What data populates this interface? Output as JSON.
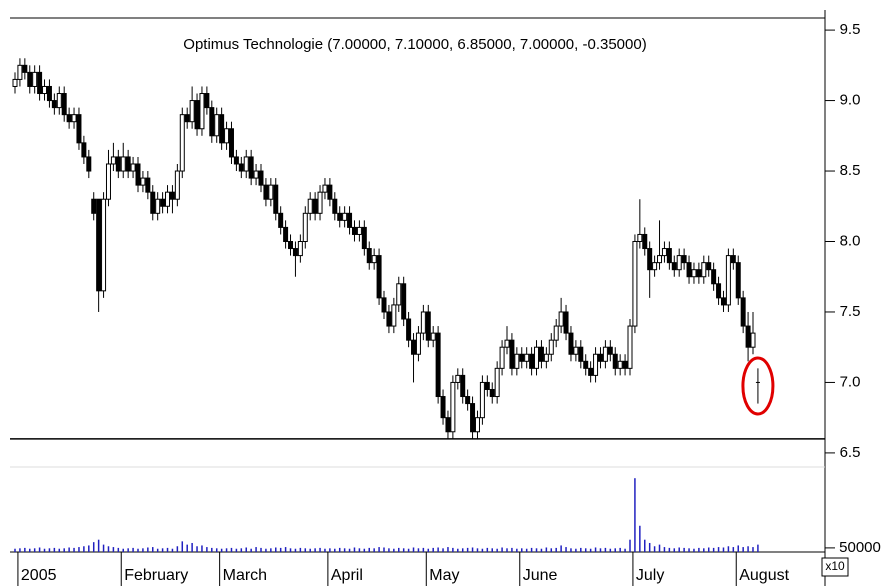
{
  "chart_data": {
    "type": "candlestick",
    "title": "Optimus Technologie (7.00000, 7.10000, 6.85000, 7.00000, -0.35000)",
    "categories": [
      null,
      "2005",
      null,
      null,
      null,
      null,
      null,
      null,
      null,
      null,
      null,
      null,
      null,
      null,
      null,
      null,
      null,
      null,
      null,
      null,
      null,
      null,
      "February",
      null,
      null,
      null,
      null,
      null,
      null,
      null,
      null,
      null,
      null,
      null,
      null,
      null,
      null,
      null,
      null,
      null,
      null,
      null,
      "March",
      null,
      null,
      null,
      null,
      null,
      null,
      null,
      null,
      null,
      null,
      null,
      null,
      null,
      null,
      null,
      null,
      null,
      null,
      null,
      null,
      null,
      "April",
      null,
      null,
      null,
      null,
      null,
      null,
      null,
      null,
      null,
      null,
      null,
      null,
      null,
      null,
      null,
      null,
      null,
      null,
      null,
      "May",
      null,
      null,
      null,
      null,
      null,
      null,
      null,
      null,
      null,
      null,
      null,
      null,
      null,
      null,
      null,
      null,
      null,
      null,
      "June",
      null,
      null,
      null,
      null,
      null,
      null,
      null,
      null,
      null,
      null,
      null,
      null,
      null,
      null,
      null,
      null,
      null,
      null,
      null,
      null,
      null,
      null,
      "July",
      null,
      null,
      null,
      null,
      null,
      null,
      null,
      null,
      null,
      null,
      null,
      null,
      null,
      null,
      null,
      null,
      null,
      null,
      null,
      null,
      "August",
      null,
      null,
      null,
      null
    ],
    "candles": [
      [
        9.1,
        9.2,
        9.05,
        9.15
      ],
      [
        9.15,
        9.3,
        9.1,
        9.25
      ],
      [
        9.25,
        9.3,
        9.15,
        9.2
      ],
      [
        9.2,
        9.25,
        9.05,
        9.1
      ],
      [
        9.1,
        9.25,
        9.05,
        9.2
      ],
      [
        9.2,
        9.25,
        9.0,
        9.05
      ],
      [
        9.05,
        9.15,
        9.0,
        9.1
      ],
      [
        9.1,
        9.15,
        8.95,
        9.0
      ],
      [
        9.0,
        9.05,
        8.9,
        8.95
      ],
      [
        8.95,
        9.1,
        8.9,
        9.05
      ],
      [
        9.05,
        9.1,
        8.85,
        8.9
      ],
      [
        8.9,
        8.95,
        8.8,
        8.85
      ],
      [
        8.85,
        8.95,
        8.8,
        8.9
      ],
      [
        8.9,
        8.95,
        8.65,
        8.7
      ],
      [
        8.7,
        8.75,
        8.55,
        8.6
      ],
      [
        8.6,
        8.65,
        8.45,
        8.5
      ],
      [
        8.3,
        8.35,
        8.15,
        8.2
      ],
      [
        8.3,
        8.3,
        7.5,
        7.65
      ],
      [
        7.65,
        8.35,
        7.6,
        8.3
      ],
      [
        8.3,
        8.65,
        8.25,
        8.55
      ],
      [
        8.55,
        8.7,
        8.5,
        8.6
      ],
      [
        8.6,
        8.65,
        8.45,
        8.5
      ],
      [
        8.5,
        8.7,
        8.45,
        8.6
      ],
      [
        8.6,
        8.65,
        8.45,
        8.5
      ],
      [
        8.5,
        8.6,
        8.45,
        8.55
      ],
      [
        8.55,
        8.6,
        8.35,
        8.4
      ],
      [
        8.4,
        8.5,
        8.35,
        8.45
      ],
      [
        8.45,
        8.5,
        8.3,
        8.35
      ],
      [
        8.35,
        8.4,
        8.15,
        8.2
      ],
      [
        8.2,
        8.35,
        8.15,
        8.3
      ],
      [
        8.3,
        8.35,
        8.2,
        8.25
      ],
      [
        8.25,
        8.4,
        8.2,
        8.35
      ],
      [
        8.35,
        8.4,
        8.2,
        8.3
      ],
      [
        8.3,
        8.55,
        8.25,
        8.5
      ],
      [
        8.5,
        8.95,
        8.45,
        8.9
      ],
      [
        8.9,
        8.95,
        8.8,
        8.85
      ],
      [
        8.85,
        9.1,
        8.8,
        9.0
      ],
      [
        9.0,
        9.05,
        8.75,
        8.8
      ],
      [
        8.8,
        9.1,
        8.75,
        9.05
      ],
      [
        9.05,
        9.1,
        8.9,
        8.95
      ],
      [
        8.95,
        9.0,
        8.7,
        8.75
      ],
      [
        8.75,
        8.95,
        8.7,
        8.9
      ],
      [
        8.9,
        8.95,
        8.65,
        8.7
      ],
      [
        8.7,
        8.85,
        8.65,
        8.8
      ],
      [
        8.8,
        8.85,
        8.55,
        8.6
      ],
      [
        8.6,
        8.65,
        8.5,
        8.55
      ],
      [
        8.55,
        8.6,
        8.45,
        8.5
      ],
      [
        8.5,
        8.65,
        8.45,
        8.6
      ],
      [
        8.6,
        8.65,
        8.4,
        8.45
      ],
      [
        8.45,
        8.55,
        8.4,
        8.5
      ],
      [
        8.5,
        8.55,
        8.35,
        8.4
      ],
      [
        8.4,
        8.45,
        8.25,
        8.3
      ],
      [
        8.3,
        8.45,
        8.25,
        8.4
      ],
      [
        8.4,
        8.45,
        8.15,
        8.2
      ],
      [
        8.2,
        8.25,
        8.05,
        8.1
      ],
      [
        8.1,
        8.15,
        7.95,
        8.0
      ],
      [
        8.0,
        8.05,
        7.9,
        7.95
      ],
      [
        7.95,
        8.0,
        7.75,
        7.9
      ],
      [
        7.9,
        8.05,
        7.85,
        8.0
      ],
      [
        8.0,
        8.25,
        7.95,
        8.2
      ],
      [
        8.2,
        8.35,
        8.15,
        8.3
      ],
      [
        8.3,
        8.35,
        8.15,
        8.2
      ],
      [
        8.2,
        8.4,
        8.15,
        8.35
      ],
      [
        8.35,
        8.45,
        8.3,
        8.4
      ],
      [
        8.4,
        8.45,
        8.25,
        8.3
      ],
      [
        8.3,
        8.35,
        8.15,
        8.2
      ],
      [
        8.2,
        8.25,
        8.1,
        8.15
      ],
      [
        8.15,
        8.25,
        8.1,
        8.2
      ],
      [
        8.2,
        8.25,
        8.05,
        8.1
      ],
      [
        8.1,
        8.15,
        8.0,
        8.05
      ],
      [
        8.05,
        8.15,
        8.0,
        8.1
      ],
      [
        8.1,
        8.15,
        7.9,
        7.95
      ],
      [
        7.95,
        8.0,
        7.8,
        7.85
      ],
      [
        7.85,
        7.95,
        7.8,
        7.9
      ],
      [
        7.9,
        7.95,
        7.55,
        7.6
      ],
      [
        7.6,
        7.65,
        7.45,
        7.5
      ],
      [
        7.5,
        7.55,
        7.35,
        7.4
      ],
      [
        7.4,
        7.6,
        7.35,
        7.55
      ],
      [
        7.55,
        7.75,
        7.5,
        7.7
      ],
      [
        7.7,
        7.75,
        7.4,
        7.45
      ],
      [
        7.45,
        7.5,
        7.25,
        7.3
      ],
      [
        7.3,
        7.35,
        7.0,
        7.2
      ],
      [
        7.2,
        7.4,
        7.15,
        7.35
      ],
      [
        7.35,
        7.55,
        7.3,
        7.5
      ],
      [
        7.5,
        7.55,
        7.25,
        7.3
      ],
      [
        7.3,
        7.4,
        7.25,
        7.35
      ],
      [
        7.35,
        7.4,
        6.85,
        6.9
      ],
      [
        6.9,
        6.95,
        6.7,
        6.75
      ],
      [
        6.75,
        6.8,
        6.6,
        6.65
      ],
      [
        6.65,
        7.05,
        6.6,
        7.0
      ],
      [
        7.0,
        7.1,
        6.95,
        7.05
      ],
      [
        7.05,
        7.1,
        6.85,
        6.9
      ],
      [
        6.9,
        6.95,
        6.8,
        6.85
      ],
      [
        6.85,
        6.9,
        6.6,
        6.65
      ],
      [
        6.65,
        6.8,
        6.6,
        6.75
      ],
      [
        6.75,
        7.05,
        6.7,
        7.0
      ],
      [
        7.0,
        7.05,
        6.9,
        6.95
      ],
      [
        6.95,
        7.0,
        6.85,
        6.9
      ],
      [
        6.9,
        7.15,
        6.85,
        7.1
      ],
      [
        7.1,
        7.3,
        7.05,
        7.25
      ],
      [
        7.25,
        7.4,
        7.2,
        7.3
      ],
      [
        7.3,
        7.35,
        7.05,
        7.1
      ],
      [
        7.1,
        7.25,
        7.05,
        7.2
      ],
      [
        7.2,
        7.25,
        7.1,
        7.15
      ],
      [
        7.15,
        7.25,
        7.1,
        7.2
      ],
      [
        7.2,
        7.25,
        7.05,
        7.1
      ],
      [
        7.1,
        7.3,
        7.05,
        7.25
      ],
      [
        7.25,
        7.3,
        7.1,
        7.15
      ],
      [
        7.15,
        7.25,
        7.1,
        7.2
      ],
      [
        7.2,
        7.35,
        7.15,
        7.3
      ],
      [
        7.3,
        7.45,
        7.25,
        7.4
      ],
      [
        7.4,
        7.6,
        7.35,
        7.5
      ],
      [
        7.5,
        7.55,
        7.3,
        7.35
      ],
      [
        7.35,
        7.4,
        7.15,
        7.2
      ],
      [
        7.2,
        7.3,
        7.15,
        7.25
      ],
      [
        7.25,
        7.3,
        7.1,
        7.15
      ],
      [
        7.15,
        7.2,
        7.05,
        7.1
      ],
      [
        7.1,
        7.15,
        7.0,
        7.05
      ],
      [
        7.05,
        7.25,
        7.0,
        7.2
      ],
      [
        7.2,
        7.25,
        7.1,
        7.15
      ],
      [
        7.15,
        7.3,
        7.1,
        7.25
      ],
      [
        7.25,
        7.3,
        7.15,
        7.2
      ],
      [
        7.2,
        7.25,
        7.05,
        7.1
      ],
      [
        7.1,
        7.2,
        7.05,
        7.15
      ],
      [
        7.15,
        7.2,
        7.05,
        7.1
      ],
      [
        7.1,
        7.45,
        7.05,
        7.4
      ],
      [
        7.4,
        8.05,
        7.35,
        8.0
      ],
      [
        8.0,
        8.3,
        7.95,
        8.05
      ],
      [
        8.05,
        8.1,
        7.9,
        7.95
      ],
      [
        7.95,
        8.0,
        7.6,
        7.8
      ],
      [
        7.8,
        7.9,
        7.75,
        7.85
      ],
      [
        7.85,
        8.15,
        7.8,
        7.9
      ],
      [
        7.9,
        8.0,
        7.85,
        7.95
      ],
      [
        7.95,
        8.0,
        7.8,
        7.85
      ],
      [
        7.85,
        7.9,
        7.75,
        7.8
      ],
      [
        7.8,
        7.95,
        7.75,
        7.9
      ],
      [
        7.9,
        7.95,
        7.8,
        7.85
      ],
      [
        7.85,
        7.9,
        7.7,
        7.75
      ],
      [
        7.75,
        7.85,
        7.7,
        7.8
      ],
      [
        7.8,
        7.85,
        7.7,
        7.75
      ],
      [
        7.75,
        7.9,
        7.7,
        7.85
      ],
      [
        7.85,
        7.9,
        7.75,
        7.8
      ],
      [
        7.8,
        7.85,
        7.65,
        7.7
      ],
      [
        7.7,
        7.75,
        7.55,
        7.6
      ],
      [
        7.6,
        7.65,
        7.5,
        7.55
      ],
      [
        7.55,
        7.95,
        7.5,
        7.9
      ],
      [
        7.9,
        7.95,
        7.8,
        7.85
      ],
      [
        7.85,
        7.9,
        7.55,
        7.6
      ],
      [
        7.6,
        7.65,
        7.35,
        7.4
      ],
      [
        7.4,
        7.5,
        7.15,
        7.25
      ],
      [
        7.25,
        7.5,
        7.2,
        7.35
      ],
      [
        7.0,
        7.1,
        6.85,
        7.0
      ]
    ],
    "volume": [
      40000,
      45000,
      50000,
      40000,
      45000,
      55000,
      40000,
      45000,
      50000,
      40000,
      45000,
      55000,
      50000,
      60000,
      70000,
      80000,
      120000,
      150000,
      90000,
      70000,
      60000,
      50000,
      40000,
      45000,
      50000,
      40000,
      45000,
      55000,
      60000,
      40000,
      45000,
      50000,
      40000,
      70000,
      130000,
      90000,
      110000,
      70000,
      80000,
      60000,
      50000,
      45000,
      40000,
      45000,
      50000,
      40000,
      45000,
      55000,
      40000,
      60000,
      50000,
      40000,
      45000,
      55000,
      50000,
      60000,
      45000,
      40000,
      50000,
      45000,
      40000,
      45000,
      50000,
      40000,
      45000,
      40000,
      50000,
      45000,
      40000,
      55000,
      45000,
      40000,
      50000,
      45000,
      60000,
      55000,
      45000,
      40000,
      50000,
      45000,
      40000,
      55000,
      45000,
      50000,
      40000,
      50000,
      55000,
      45000,
      60000,
      50000,
      40000,
      45000,
      50000,
      55000,
      45000,
      40000,
      50000,
      45000,
      40000,
      55000,
      45000,
      50000,
      40000,
      45000,
      40000,
      50000,
      45000,
      40000,
      55000,
      45000,
      50000,
      80000,
      60000,
      45000,
      40000,
      50000,
      45000,
      40000,
      55000,
      45000,
      50000,
      40000,
      45000,
      50000,
      40000,
      150000,
      900000,
      320000,
      150000,
      110000,
      70000,
      90000,
      60000,
      50000,
      45000,
      55000,
      50000,
      45000,
      40000,
      50000,
      45000,
      55000,
      50000,
      60000,
      55000,
      70000,
      60000,
      80000,
      60000,
      70000,
      60000,
      90000
    ],
    "ylim": [
      6.4,
      9.6
    ],
    "yticks": [
      6.5,
      {
        "value": 7,
        "label": "7.0"
      },
      7.5,
      {
        "value": 8,
        "label": "8.0"
      },
      8.5,
      {
        "value": 9,
        "label": "9.0"
      },
      9.5
    ],
    "volume_ylim": [
      0,
      1000000
    ],
    "volume_yticks": [
      50000
    ],
    "volume_multiplier": "x10",
    "support_line": 6.6,
    "up_color": "#ffffff",
    "down_color": "#000000",
    "volume_color": "#2020c0",
    "highlight_color": "#e00000"
  }
}
